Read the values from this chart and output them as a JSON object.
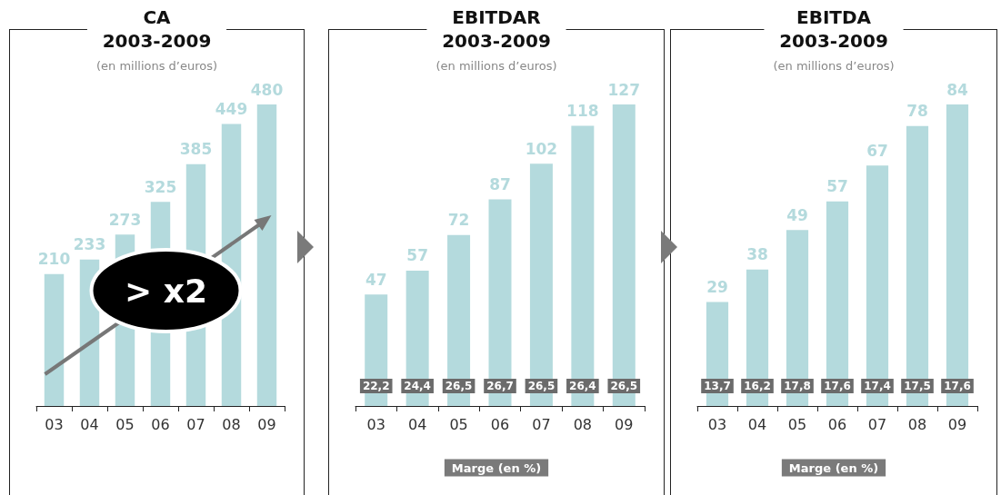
{
  "chart_data": [
    {
      "type": "bar",
      "title": "CA 2003-2009",
      "subtitle": "(en millions d’euros)",
      "categories": [
        "03",
        "04",
        "05",
        "06",
        "07",
        "08",
        "09"
      ],
      "values": [
        210,
        233,
        273,
        325,
        385,
        449,
        480
      ],
      "color": "#b4dadd",
      "data_labels": true,
      "grid": false,
      "annotations": [
        "> x2"
      ]
    },
    {
      "type": "bar",
      "title": "EBITDAR 2003-2009",
      "subtitle": "(en millions d’euros)",
      "categories": [
        "03",
        "04",
        "05",
        "06",
        "07",
        "08",
        "09"
      ],
      "values": [
        47,
        57,
        72,
        87,
        102,
        118,
        127
      ],
      "color": "#b4dadd",
      "data_labels": true,
      "grid": false,
      "annotations": [
        {
          "text": "22,2",
          "x": "03"
        },
        {
          "text": "24,4",
          "x": "04"
        },
        {
          "text": "26,5",
          "x": "05"
        },
        {
          "text": "26,7",
          "x": "06"
        },
        {
          "text": "26,5",
          "x": "07"
        },
        {
          "text": "26,4",
          "x": "08"
        },
        {
          "text": "26,5",
          "x": "09"
        },
        "Marge (en %)"
      ]
    },
    {
      "type": "bar",
      "title": "EBITDA 2003-2009",
      "subtitle": "(en millions d’euros)",
      "categories": [
        "03",
        "04",
        "05",
        "06",
        "07",
        "08",
        "09"
      ],
      "values": [
        29,
        38,
        49,
        57,
        67,
        78,
        84
      ],
      "color": "#b4dadd",
      "data_labels": true,
      "grid": false,
      "annotations": [
        {
          "text": "13,7",
          "x": "03"
        },
        {
          "text": "16,2",
          "x": "04"
        },
        {
          "text": "17,8",
          "x": "05"
        },
        {
          "text": "17,6",
          "x": "06"
        },
        {
          "text": "17,4",
          "x": "07"
        },
        {
          "text": "17,5",
          "x": "08"
        },
        {
          "text": "17,6",
          "x": "09"
        },
        "Marge (en %)"
      ]
    }
  ]
}
